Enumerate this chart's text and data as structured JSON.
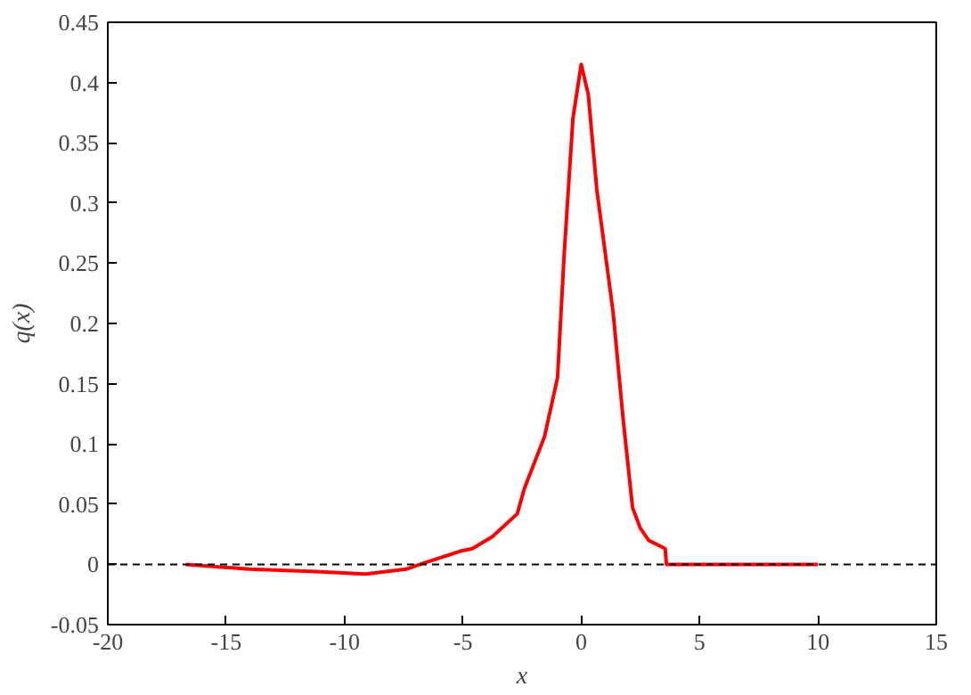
{
  "chart_data": {
    "type": "line",
    "xlabel": "x",
    "ylabel": "q(x)",
    "series": [
      {
        "color": "#ff0000",
        "x": [
          -16.7,
          -14,
          -11.2,
          -9.1,
          -7.4,
          -6.5,
          -5.1,
          -4.6,
          -3.75,
          -2.7,
          -2.4,
          -1.55,
          -1,
          -0.72,
          -0.35,
          0,
          0.3,
          0.66,
          1.35,
          1.76,
          2.17,
          2.5,
          2.85,
          3.55,
          3.6,
          10
        ],
        "values": [
          0,
          -0.004,
          -0.006,
          -0.008,
          -0.004,
          0.002,
          0.011,
          0.013,
          0.023,
          0.042,
          0.063,
          0.106,
          0.155,
          0.257,
          0.37,
          0.415,
          0.39,
          0.311,
          0.209,
          0.123,
          0.047,
          0.03,
          0.02,
          0.013,
          0,
          0
        ]
      }
    ],
    "ref_lines": [
      {
        "axis": "y",
        "value": 0,
        "color": "#000000",
        "line_style": "dashed"
      }
    ],
    "xlim": [
      -20,
      15
    ],
    "xticks": [
      -20,
      -15,
      -10,
      -5,
      0,
      5,
      10,
      15
    ],
    "ylim": [
      -0.05,
      0.45
    ],
    "yticks": [
      -0.05,
      0,
      0.05,
      0.1,
      0.15,
      0.2,
      0.25,
      0.3,
      0.35,
      0.4,
      0.45
    ],
    "grid": false,
    "marker": "none",
    "line_style": "solid"
  }
}
